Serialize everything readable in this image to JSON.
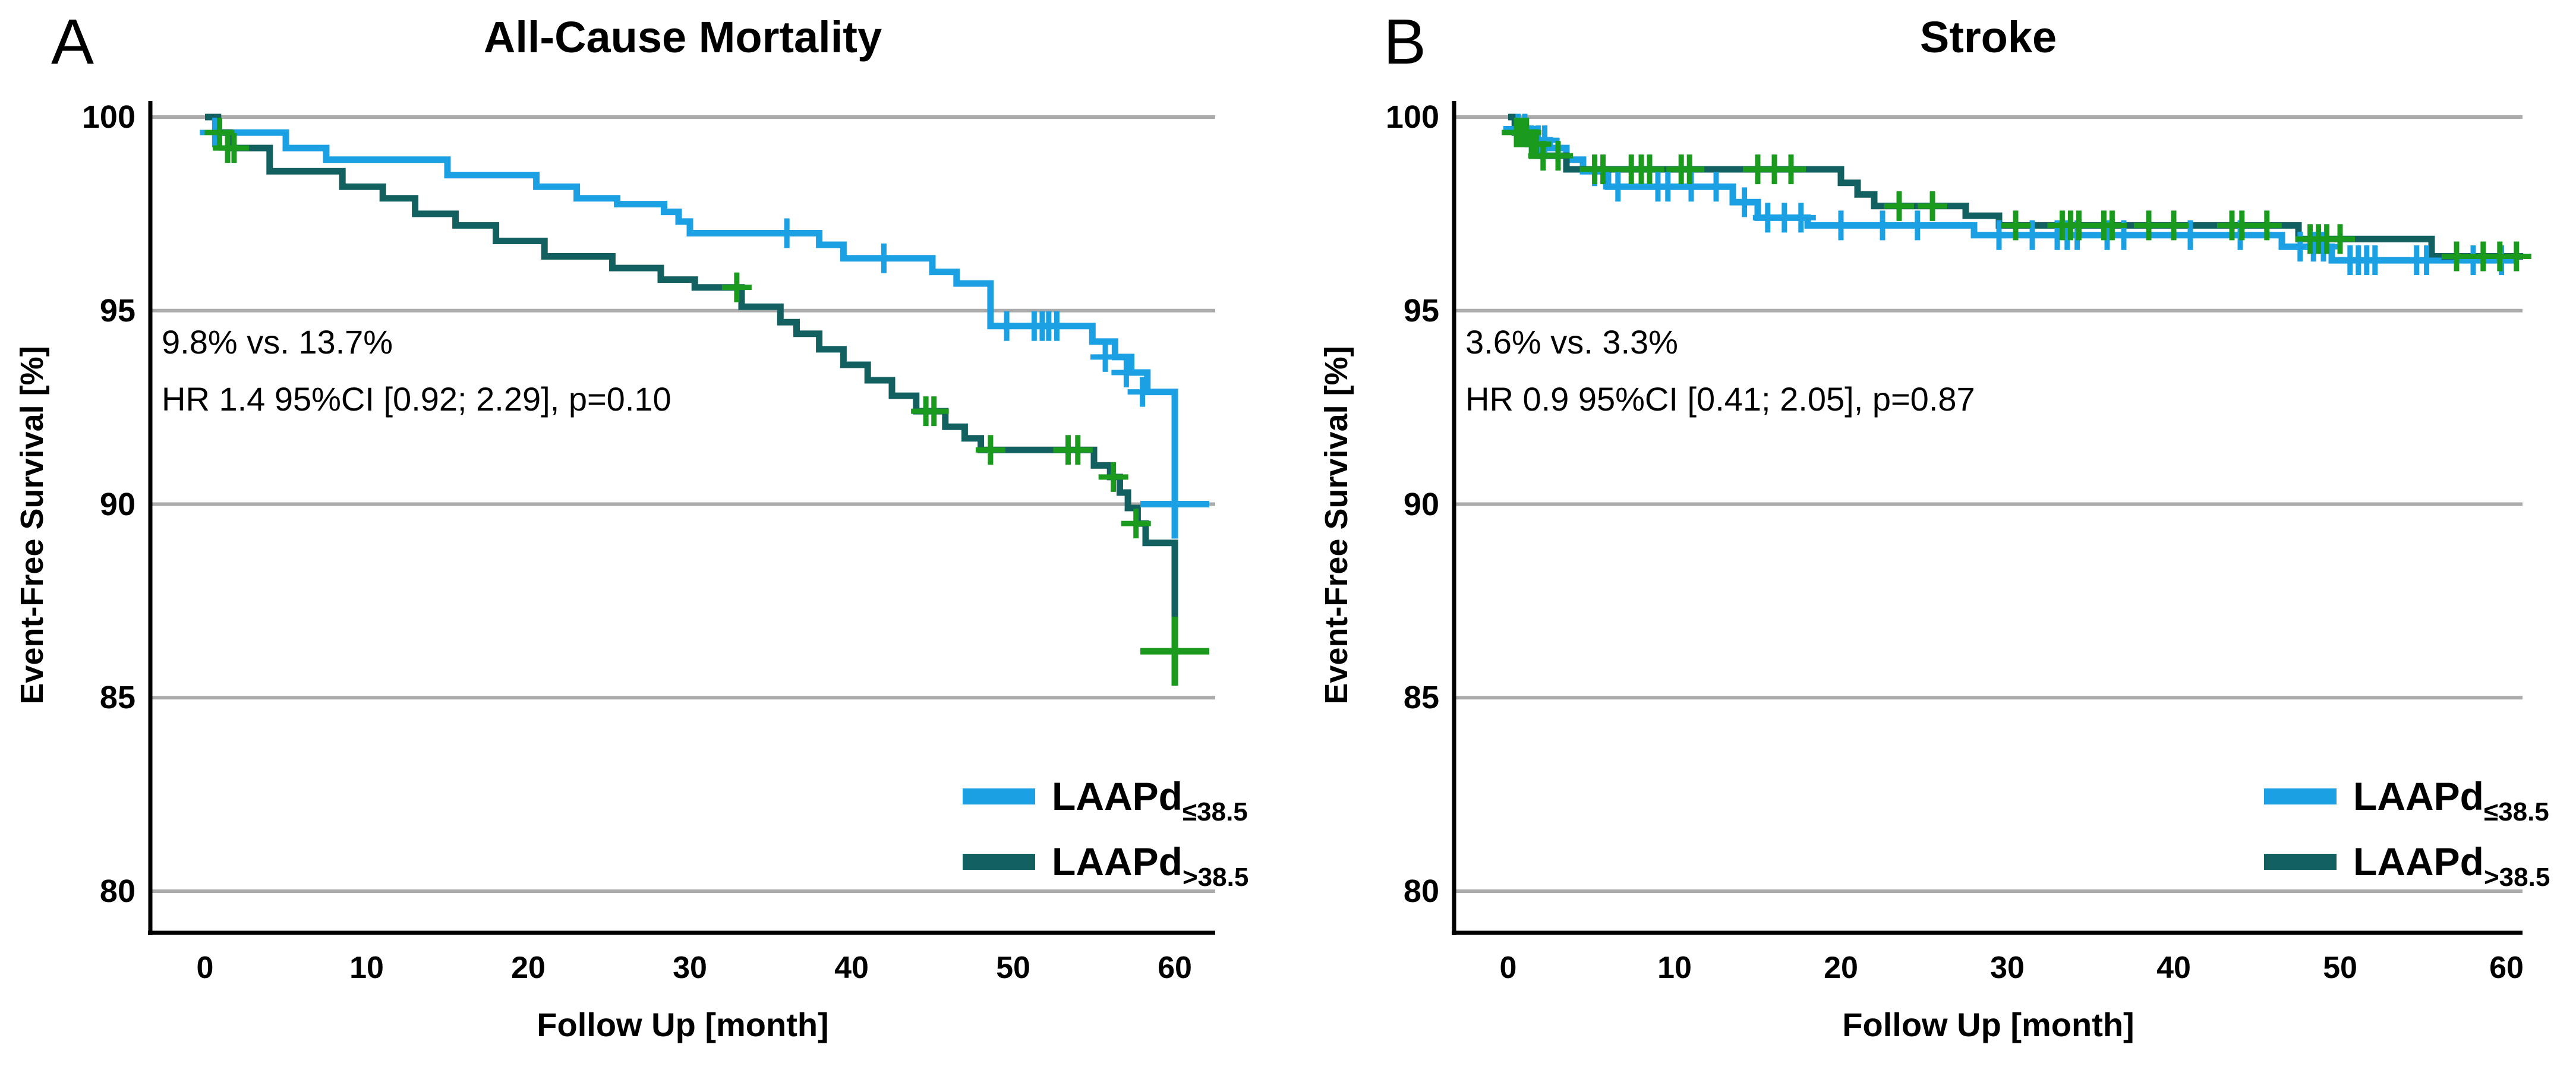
{
  "colors": {
    "blue": "#1BA0E4",
    "teal": "#136061",
    "censor_green": "#1B9B1E",
    "grid": "#ABABAB",
    "axis": "#000000"
  },
  "legend": {
    "items": [
      {
        "base": "LAAPd",
        "sub": "≤38.5",
        "color_key": "blue"
      },
      {
        "base": "LAAPd",
        "sub": ">38.5",
        "color_key": "teal"
      }
    ]
  },
  "panels": [
    {
      "letter": "A",
      "title": "All-Cause Mortality",
      "ylabel": "Event-Free Survival [%]",
      "xlabel": "Follow Up [month]",
      "annotation_line1": "9.8% vs. 13.7%",
      "annotation_line2": "HR 1.4 95%CI [0.92; 2.29], p=0.10"
    },
    {
      "letter": "B",
      "title": "Stroke",
      "ylabel": "Event-Free Survival [%]",
      "xlabel": "Follow Up [month]",
      "annotation_line1": "3.6% vs. 3.3%",
      "annotation_line2": "HR 0.9 95%CI [0.41; 2.05], p=0.87"
    }
  ],
  "chart_data": [
    {
      "panel": "A",
      "type": "line",
      "subtype": "kaplan-meier-step",
      "title": "All-Cause Mortality",
      "xlabel": "Follow Up [month]",
      "ylabel": "Event-Free Survival [%]",
      "x_ticks": [
        0,
        10,
        20,
        30,
        40,
        50,
        60
      ],
      "y_ticks": [
        100,
        95,
        90,
        85,
        80
      ],
      "xlim": [
        -3.4,
        62.5
      ],
      "ylim": [
        79,
        100.8
      ],
      "grid": "horizontal",
      "legend_position": "lower-right",
      "series": [
        {
          "name": "LAAPd≤38.5",
          "color": "blue",
          "censor_color": "blue",
          "end_x": 60.4,
          "steps": [
            [
              0,
              100
            ],
            [
              0.7,
              99.6
            ],
            [
              5,
              99.2
            ],
            [
              7.5,
              98.9
            ],
            [
              15,
              98.5
            ],
            [
              20.5,
              98.2
            ],
            [
              23,
              97.9
            ],
            [
              25.5,
              97.75
            ],
            [
              28.4,
              97.55
            ],
            [
              29.3,
              97.3
            ],
            [
              30,
              97.0
            ],
            [
              38,
              96.7
            ],
            [
              39.5,
              96.35
            ],
            [
              45,
              96.0
            ],
            [
              46.5,
              95.7
            ],
            [
              48.6,
              94.6
            ],
            [
              54.9,
              94.2
            ],
            [
              56.3,
              93.8
            ],
            [
              57.3,
              93.4
            ],
            [
              58.3,
              92.9
            ],
            [
              60,
              90.0
            ]
          ],
          "censors": [
            [
              0.6,
              99.6
            ],
            [
              36,
              97.0
            ],
            [
              42,
              96.35
            ],
            [
              49.6,
              94.6
            ],
            [
              51.3,
              94.6
            ],
            [
              51.8,
              94.6
            ],
            [
              52.2,
              94.6
            ],
            [
              52.7,
              94.6
            ],
            [
              55.7,
              93.8
            ],
            [
              57.0,
              93.4
            ],
            [
              58.0,
              92.9
            ]
          ],
          "big_censors": [
            [
              60,
              90.0
            ]
          ]
        },
        {
          "name": "LAAPd>38.5",
          "color": "teal",
          "censor_color": "censor_green",
          "end_x": 60.3,
          "steps": [
            [
              0,
              100
            ],
            [
              0.8,
              99.6
            ],
            [
              1.5,
              99.2
            ],
            [
              4,
              98.6
            ],
            [
              8.5,
              98.2
            ],
            [
              11,
              97.9
            ],
            [
              13,
              97.5
            ],
            [
              15.5,
              97.2
            ],
            [
              18,
              96.8
            ],
            [
              21,
              96.4
            ],
            [
              25.2,
              96.1
            ],
            [
              28.2,
              95.8
            ],
            [
              30.3,
              95.6
            ],
            [
              33.2,
              95.1
            ],
            [
              35.6,
              94.7
            ],
            [
              36.6,
              94.4
            ],
            [
              38,
              94.0
            ],
            [
              39.5,
              93.6
            ],
            [
              41,
              93.2
            ],
            [
              42.5,
              92.8
            ],
            [
              44,
              92.4
            ],
            [
              45.8,
              92.0
            ],
            [
              47,
              91.7
            ],
            [
              48,
              91.4
            ],
            [
              55,
              91.0
            ],
            [
              56,
              90.7
            ],
            [
              56.6,
              90.3
            ],
            [
              57.1,
              89.9
            ],
            [
              57.7,
              89.5
            ],
            [
              58.2,
              89.0
            ],
            [
              60,
              86.2
            ]
          ],
          "censors": [
            [
              0.9,
              99.6
            ],
            [
              1.4,
              99.2
            ],
            [
              1.8,
              99.2
            ],
            [
              32.9,
              95.6
            ],
            [
              44.6,
              92.4
            ],
            [
              45.1,
              92.4
            ],
            [
              48.6,
              91.4
            ],
            [
              53.4,
              91.4
            ],
            [
              54.0,
              91.4
            ],
            [
              56.2,
              90.7
            ],
            [
              57.6,
              89.5
            ]
          ],
          "big_censors": [
            [
              60,
              86.2
            ]
          ]
        }
      ]
    },
    {
      "panel": "B",
      "type": "line",
      "subtype": "kaplan-meier-step",
      "title": "Stroke",
      "xlabel": "Follow Up [month]",
      "ylabel": "Event-Free Survival [%]",
      "x_ticks": [
        0,
        10,
        20,
        30,
        40,
        50,
        60
      ],
      "y_ticks": [
        100,
        95,
        90,
        85,
        80
      ],
      "xlim": [
        -3.3,
        62.3
      ],
      "ylim": [
        79,
        100.8
      ],
      "grid": "horizontal",
      "legend_position": "lower-right",
      "series": [
        {
          "name": "LAAPd≤38.5",
          "color": "blue",
          "censor_color": "blue",
          "end_x": 60.5,
          "steps": [
            [
              0,
              100
            ],
            [
              0.5,
              99.7
            ],
            [
              1.1,
              99.4
            ],
            [
              2.5,
              99.2
            ],
            [
              3.5,
              98.9
            ],
            [
              4.5,
              98.6
            ],
            [
              6,
              98.2
            ],
            [
              13.5,
              97.8
            ],
            [
              15,
              97.4
            ],
            [
              18,
              97.2
            ],
            [
              28,
              96.95
            ],
            [
              46.5,
              96.65
            ],
            [
              49.5,
              96.3
            ]
          ],
          "censors": [
            [
              0.6,
              99.7
            ],
            [
              1.0,
              99.7
            ],
            [
              1.4,
              99.4
            ],
            [
              1.8,
              99.4
            ],
            [
              2.2,
              99.4
            ],
            [
              5.2,
              98.6
            ],
            [
              6.6,
              98.2
            ],
            [
              9.0,
              98.2
            ],
            [
              9.6,
              98.2
            ],
            [
              11.0,
              98.2
            ],
            [
              12.5,
              98.2
            ],
            [
              14.2,
              97.8
            ],
            [
              15.6,
              97.4
            ],
            [
              16.6,
              97.4
            ],
            [
              17.6,
              97.4
            ],
            [
              20.0,
              97.2
            ],
            [
              22.5,
              97.2
            ],
            [
              24.6,
              97.2
            ],
            [
              29.5,
              96.95
            ],
            [
              31.5,
              96.95
            ],
            [
              33.0,
              96.95
            ],
            [
              33.6,
              96.95
            ],
            [
              34.2,
              96.95
            ],
            [
              36.0,
              96.95
            ],
            [
              37.0,
              96.95
            ],
            [
              41.0,
              96.95
            ],
            [
              44.0,
              96.95
            ],
            [
              47.6,
              96.65
            ],
            [
              48.4,
              96.65
            ],
            [
              49.0,
              96.65
            ],
            [
              50.6,
              96.3
            ],
            [
              51.1,
              96.3
            ],
            [
              51.6,
              96.3
            ],
            [
              52.1,
              96.3
            ],
            [
              54.6,
              96.3
            ],
            [
              55.2,
              96.3
            ],
            [
              58.0,
              96.3
            ],
            [
              59.7,
              96.3
            ]
          ],
          "big_censors": []
        },
        {
          "name": "LAAPd>38.5",
          "color": "teal",
          "censor_color": "censor_green",
          "end_x": 61.0,
          "steps": [
            [
              0,
              100
            ],
            [
              0.4,
              99.6
            ],
            [
              1.2,
              99.3
            ],
            [
              1.8,
              99.0
            ],
            [
              3.5,
              98.65
            ],
            [
              20,
              98.3
            ],
            [
              21,
              98.0
            ],
            [
              22,
              97.7
            ],
            [
              27.5,
              97.45
            ],
            [
              29.5,
              97.2
            ],
            [
              47.5,
              96.85
            ],
            [
              55.5,
              96.4
            ]
          ],
          "censors": [
            [
              0.5,
              99.6
            ],
            [
              0.8,
              99.6
            ],
            [
              1.1,
              99.6
            ],
            [
              1.4,
              99.3
            ],
            [
              1.7,
              99.3
            ],
            [
              2.1,
              99.0
            ],
            [
              3.0,
              99.0
            ],
            [
              5.2,
              98.65
            ],
            [
              5.7,
              98.65
            ],
            [
              7.4,
              98.65
            ],
            [
              8.0,
              98.65
            ],
            [
              8.5,
              98.65
            ],
            [
              10.4,
              98.65
            ],
            [
              10.9,
              98.65
            ],
            [
              15.0,
              98.65
            ],
            [
              16.0,
              98.65
            ],
            [
              17.0,
              98.65
            ],
            [
              23.5,
              97.7
            ],
            [
              25.5,
              97.7
            ],
            [
              30.5,
              97.2
            ],
            [
              33.3,
              97.2
            ],
            [
              33.8,
              97.2
            ],
            [
              34.3,
              97.2
            ],
            [
              35.8,
              97.2
            ],
            [
              36.3,
              97.2
            ],
            [
              38.5,
              97.2
            ],
            [
              40.0,
              97.2
            ],
            [
              43.5,
              97.2
            ],
            [
              44.1,
              97.2
            ],
            [
              45.6,
              97.2
            ],
            [
              48.2,
              96.85
            ],
            [
              48.7,
              96.85
            ],
            [
              49.2,
              96.85
            ],
            [
              50.0,
              96.85
            ],
            [
              57.0,
              96.4
            ],
            [
              58.6,
              96.4
            ],
            [
              59.6,
              96.4
            ],
            [
              60.6,
              96.4
            ]
          ],
          "big_censors": []
        }
      ]
    }
  ]
}
